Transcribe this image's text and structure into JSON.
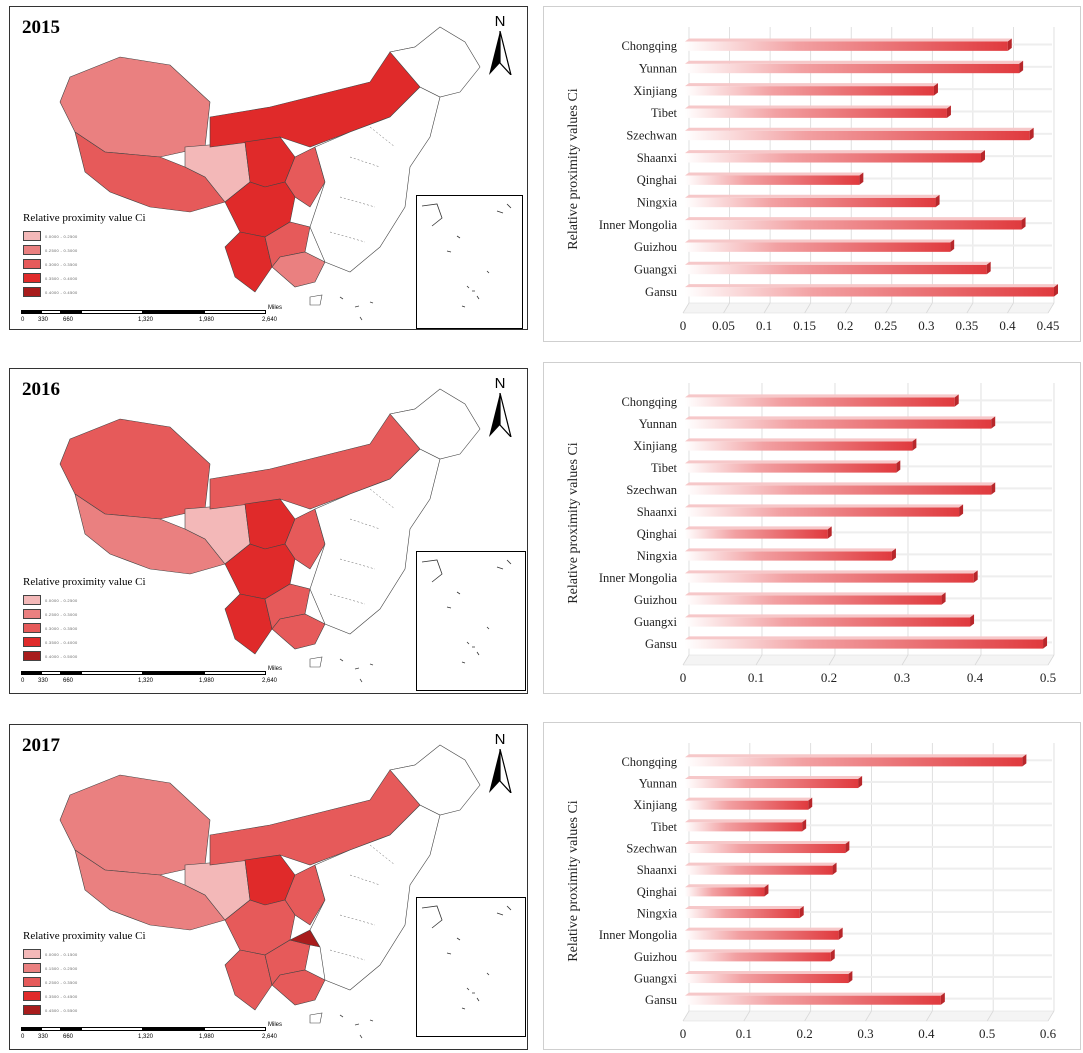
{
  "panels": [
    {
      "year": "2015",
      "legend_title": "Relative proximity value Ci",
      "legend_ranges": [
        "0.0000 - 0.2500",
        "0.2500 - 0.3000",
        "0.3000 - 0.3500",
        "0.3500 - 0.4000",
        "0.4000 - 0.4500"
      ],
      "legend_colors": [
        "#f3b8b8",
        "#ea8080",
        "#e65a5a",
        "#e02a2a",
        "#a81c1c"
      ],
      "scale": {
        "ticks": [
          "0",
          "330",
          "660",
          "1,320",
          "1,980",
          "2,640"
        ],
        "unit": "Miles"
      },
      "north": "N",
      "chart_data": {
        "type": "bar",
        "orientation": "horizontal",
        "ylabel": "Relative proximity values Ci",
        "categories": [
          "Chongqing",
          "Yunnan",
          "Xinjiang",
          "Tibet",
          "Szechwan",
          "Shaanxi",
          "Qinghai",
          "Ningxia",
          "Inner Mongolia",
          "Guizhou",
          "Guangxi",
          "Gansu"
        ],
        "values": [
          0.393,
          0.407,
          0.302,
          0.318,
          0.42,
          0.36,
          0.21,
          0.304,
          0.41,
          0.322,
          0.367,
          0.45
        ],
        "xlim": [
          0,
          0.45
        ],
        "xticks": [
          "0",
          "0.05",
          "0.1",
          "0.15",
          "0.2",
          "0.25",
          "0.3",
          "0.35",
          "0.4",
          "0.45"
        ],
        "grid": true,
        "bar_color": "#e03a3e"
      }
    },
    {
      "year": "2016",
      "legend_title": "Relative proximity value Ci",
      "legend_ranges": [
        "0.0000 - 0.2500",
        "0.2500 - 0.3000",
        "0.3000 - 0.3500",
        "0.3500 - 0.4000",
        "0.4000 - 0.5000"
      ],
      "legend_colors": [
        "#f3b8b8",
        "#ea8080",
        "#e65a5a",
        "#e02a2a",
        "#a81c1c"
      ],
      "scale": {
        "ticks": [
          "0",
          "330",
          "660",
          "1,320",
          "1,980",
          "2,640"
        ],
        "unit": "Miles"
      },
      "north": "N",
      "chart_data": {
        "type": "bar",
        "orientation": "horizontal",
        "ylabel": "Relative proximity values Ci",
        "categories": [
          "Chongqing",
          "Yunnan",
          "Xinjiang",
          "Tibet",
          "Szechwan",
          "Shaanxi",
          "Qinghai",
          "Ningxia",
          "Inner Mongolia",
          "Guizhou",
          "Guangxi",
          "Gansu"
        ],
        "values": [
          0.364,
          0.414,
          0.306,
          0.284,
          0.414,
          0.37,
          0.19,
          0.278,
          0.39,
          0.346,
          0.385,
          0.485
        ],
        "xlim": [
          0,
          0.5
        ],
        "xticks": [
          "0",
          "0.1",
          "0.2",
          "0.3",
          "0.4",
          "0.5"
        ],
        "grid": true,
        "bar_color": "#e03a3e"
      }
    },
    {
      "year": "2017",
      "legend_title": "Relative proximity value Ci",
      "legend_ranges": [
        "0.0000 - 0.1500",
        "0.1500 - 0.2500",
        "0.2500 - 0.3500",
        "0.3500 - 0.4500",
        "0.4500 - 0.5500"
      ],
      "legend_colors": [
        "#f3b8b8",
        "#ea8080",
        "#e65a5a",
        "#e02a2a",
        "#a81c1c"
      ],
      "scale": {
        "ticks": [
          "0",
          "330",
          "660",
          "1,320",
          "1,980",
          "2,640"
        ],
        "unit": "Miles"
      },
      "north": "N",
      "chart_data": {
        "type": "bar",
        "orientation": "horizontal",
        "ylabel": "Relative proximity values Ci",
        "categories": [
          "Chongqing",
          "Yunnan",
          "Xinjiang",
          "Tibet",
          "Szechwan",
          "Shaanxi",
          "Qinghai",
          "Ningxia",
          "Inner Mongolia",
          "Guizhou",
          "Guangxi",
          "Gansu"
        ],
        "values": [
          0.548,
          0.278,
          0.196,
          0.186,
          0.257,
          0.236,
          0.124,
          0.182,
          0.246,
          0.233,
          0.262,
          0.414
        ],
        "xlim": [
          0,
          0.6
        ],
        "xticks": [
          "0",
          "0.1",
          "0.2",
          "0.3",
          "0.4",
          "0.5",
          "0.6"
        ],
        "grid": true,
        "bar_color": "#e03a3e"
      }
    }
  ]
}
